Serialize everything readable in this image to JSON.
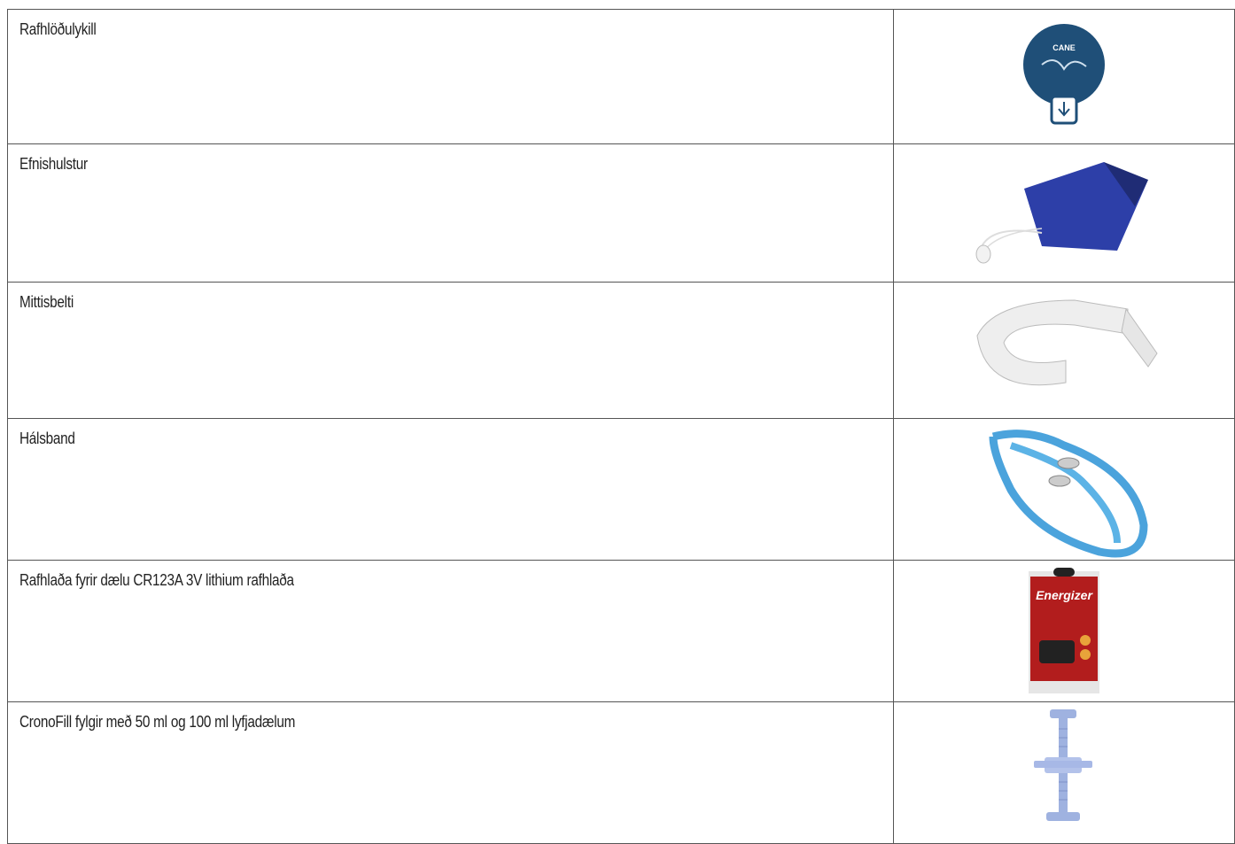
{
  "table": {
    "rows": [
      [
        "Rafhlöðulykill"
      ],
      [
        "Efnishulstur"
      ],
      [
        "Mittisbelti"
      ],
      [
        "Hálsband"
      ],
      [
        "Rafhlaða fyrir dælu CR123A 3V lithium rafhlaða"
      ],
      [
        "CronoFill fylgir með 50 ml og 100 ml lyfjadælum"
      ]
    ]
  }
}
